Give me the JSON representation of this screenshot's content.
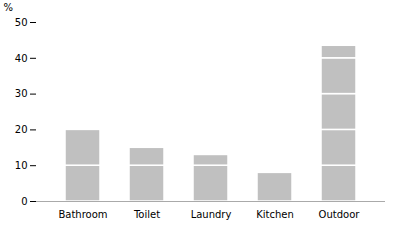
{
  "chart_data": {
    "type": "bar",
    "stacked": true,
    "categories": [
      "Bathroom",
      "Toilet",
      "Laundry",
      "Kitchen",
      "Outdoor"
    ],
    "values": [
      [
        10,
        10
      ],
      [
        10,
        5
      ],
      [
        10,
        3
      ],
      [
        8
      ],
      [
        10,
        10,
        10,
        10,
        3.5
      ]
    ],
    "color": "#c0c0c0",
    "ylabel": "%",
    "ylim": [
      0,
      50
    ],
    "yticks": [
      0,
      10,
      20,
      30,
      40,
      50
    ],
    "grid": false
  }
}
